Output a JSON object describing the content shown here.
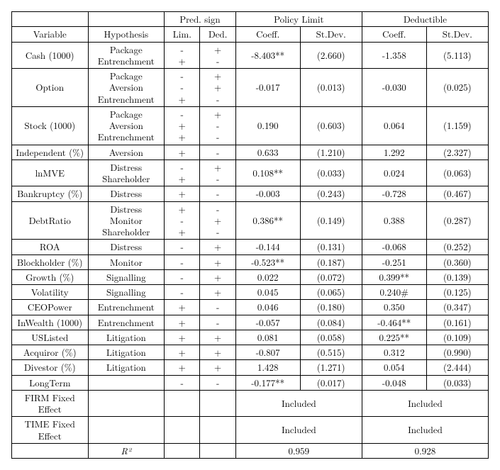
{
  "header": {
    "blank1": "",
    "blank2": "",
    "pred_sign": "Pred. sign",
    "policy_limit": "Policy Limit",
    "deductible": "Deductible",
    "variable": "Variable",
    "hypothesis": "Hypothesis",
    "lim": "Lim.",
    "ded": "Ded.",
    "coef": "Coeff.",
    "stdev": "St.Dev."
  },
  "rows": {
    "cash": {
      "var": "Cash (1000)",
      "hyp": "Package\nEntrenchment",
      "lim": "-\n+",
      "ded": "+\n-",
      "pl_coef": "-8.403**",
      "pl_sd": "(2.660)",
      "d_coef": "-1.358",
      "d_sd": "(5.113)"
    },
    "option": {
      "var": "Option",
      "hyp": "Package\nAversion\nEntrenchment",
      "lim": "-\n-\n+",
      "ded": "+\n+\n-",
      "pl_coef": "-0.017",
      "pl_sd": "(0.013)",
      "d_coef": "-0.030",
      "d_sd": "(0.025)"
    },
    "stock": {
      "var": "Stock (1000)",
      "hyp": "Package\nAversion\nEntrenchment",
      "lim": "-\n+\n+",
      "ded": "+\n-\n-",
      "pl_coef": "0.190",
      "pl_sd": "(0.603)",
      "d_coef": "0.064",
      "d_sd": "(1.159)"
    },
    "independent": {
      "var": "Independent (%)",
      "hyp": "Aversion",
      "lim": "+",
      "ded": "-",
      "pl_coef": "0.633",
      "pl_sd": "(1.210)",
      "d_coef": "1.292",
      "d_sd": "(2.327)"
    },
    "lnmve": {
      "var": "lnMVE",
      "hyp": "Distress\nShareholder",
      "lim": "-\n+",
      "ded": "+\n-",
      "pl_coef": "0.108**",
      "pl_sd": "(0.033)",
      "d_coef": "0.024",
      "d_sd": "(0.063)"
    },
    "bankruptcy": {
      "var": "Bankruptcy (%)",
      "hyp": "Distress",
      "lim": "+",
      "ded": "-",
      "pl_coef": "-0.003",
      "pl_sd": "(0.243)",
      "d_coef": "-0.728",
      "d_sd": "(0.467)"
    },
    "debtratio": {
      "var": "DebtRatio",
      "hyp": "Distress\nMonitor\nShareholder",
      "lim": "+\n-\n+",
      "ded": "-\n+\n-",
      "pl_coef": "0.386**",
      "pl_sd": "(0.149)",
      "d_coef": "0.388",
      "d_sd": "(0.287)"
    },
    "roa": {
      "var": "ROA",
      "hyp": "Distress",
      "lim": "-",
      "ded": "+",
      "pl_coef": "-0.144",
      "pl_sd": "(0.131)",
      "d_coef": "-0.068",
      "d_sd": "(0.252)"
    },
    "blockholder": {
      "var": "Blockholder (%)",
      "hyp": "Monitor",
      "lim": "-",
      "ded": "+",
      "pl_coef": "-0.523**",
      "pl_sd": "(0.187)",
      "d_coef": "-0.251",
      "d_sd": "(0.360)"
    },
    "growth": {
      "var": "Growth (%)",
      "hyp": "Signalling",
      "lim": "-",
      "ded": "+",
      "pl_coef": "0.022",
      "pl_sd": "(0.072)",
      "d_coef": "0.399**",
      "d_sd": "(0.139)"
    },
    "volatility": {
      "var": "Volatility",
      "hyp": "Signalling",
      "lim": "-",
      "ded": "+",
      "pl_coef": "0.045",
      "pl_sd": "(0.065)",
      "d_coef": "0.240#",
      "d_sd": "(0.125)"
    },
    "ceopower": {
      "var": "CEOPower",
      "hyp": "Entrenchment",
      "lim": "+",
      "ded": "-",
      "pl_coef": "0.046",
      "pl_sd": "(0.180)",
      "d_coef": "0.350",
      "d_sd": "(0.347)"
    },
    "inwealth": {
      "var": "InWealth (1000)",
      "hyp": "Entrenchment",
      "lim": "+",
      "ded": "-",
      "pl_coef": "-0.057",
      "pl_sd": "(0.084)",
      "d_coef": "-0.464**",
      "d_sd": "(0.161)"
    },
    "uslisted": {
      "var": "USListed",
      "hyp": "Litigation",
      "lim": "+",
      "ded": "+",
      "pl_coef": "0.081",
      "pl_sd": "(0.058)",
      "d_coef": "0.225**",
      "d_sd": "(0.109)"
    },
    "acquiror": {
      "var": "Acquiror (%)",
      "hyp": "Litigation",
      "lim": "+",
      "ded": "+",
      "pl_coef": "-0.807",
      "pl_sd": "(0.515)",
      "d_coef": "0.312",
      "d_sd": "(0.990)"
    },
    "divestor": {
      "var": "Divestor (%)",
      "hyp": "Litigation",
      "lim": "+",
      "ded": "+",
      "pl_coef": "1.428",
      "pl_sd": "(1.271)",
      "d_coef": "0.054",
      "d_sd": "(2.444)"
    },
    "longterm": {
      "var": "LongTerm",
      "hyp": "",
      "lim": "-",
      "ded": "-",
      "pl_coef": "-0.177**",
      "pl_sd": "(0.017)",
      "d_coef": "-0.048",
      "d_sd": "(0.033)"
    }
  },
  "footer": {
    "firm_fe": "FIRM Fixed Effect",
    "time_fe": "TIME Fixed Effect",
    "included": "Included",
    "r2_label": "R²",
    "r2_pl": "0.959",
    "r2_d": "0.928"
  }
}
